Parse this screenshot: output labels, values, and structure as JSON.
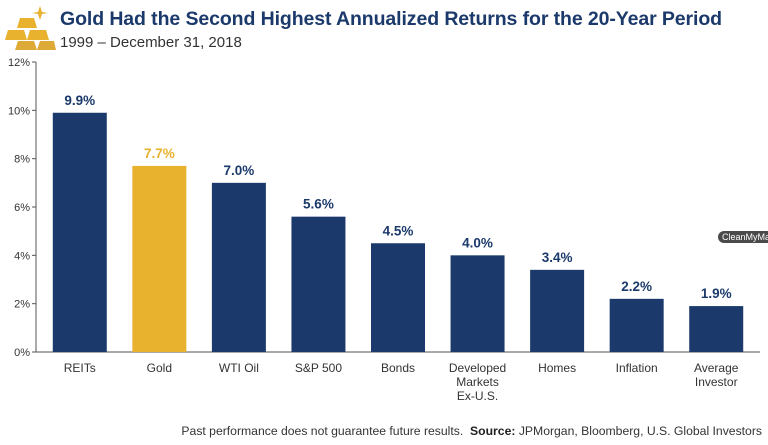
{
  "header": {
    "title": "Gold Had the Second Highest Annualized Returns for the 20-Year Period",
    "subtitle": "1999 – December 31, 2018"
  },
  "footer": {
    "disclaimer": "Past performance does not guarantee future results.",
    "source_label": "Source:",
    "source_text": "JPMorgan, Bloomberg, U.S. Global Investors"
  },
  "watermark": {
    "text": "CleanMyMa"
  },
  "logo": {
    "icon": "gold-bars-icon"
  },
  "colors": {
    "bar": "#1b3a6b",
    "highlight": "#e8b12e",
    "label": "#1b3a6b",
    "highlight_label": "#e8b12e",
    "axis": "#555555"
  },
  "chart_data": {
    "type": "bar",
    "categories": [
      "REITs",
      "Gold",
      "WTI Oil",
      "S&P 500",
      "Bonds",
      "Developed\nMarkets\nEx-U.S.",
      "Homes",
      "Inflation",
      "Average\nInvestor"
    ],
    "values": [
      9.9,
      7.7,
      7.0,
      5.6,
      4.5,
      4.0,
      3.4,
      2.2,
      1.9
    ],
    "data_labels": [
      "9.9%",
      "7.7%",
      "7.0%",
      "5.6%",
      "4.5%",
      "4.0%",
      "3.4%",
      "2.2%",
      "1.9%"
    ],
    "highlight_index": 1,
    "ylim": [
      0,
      12
    ],
    "yticks": [
      0,
      2,
      4,
      6,
      8,
      10,
      12
    ],
    "ytick_labels": [
      "0%",
      "2%",
      "4%",
      "6%",
      "8%",
      "10%",
      "12%"
    ],
    "title": "Gold Had the Second Highest Annualized Returns for the 20-Year Period",
    "xlabel": "",
    "ylabel": "",
    "grid": false,
    "legend": "none"
  }
}
